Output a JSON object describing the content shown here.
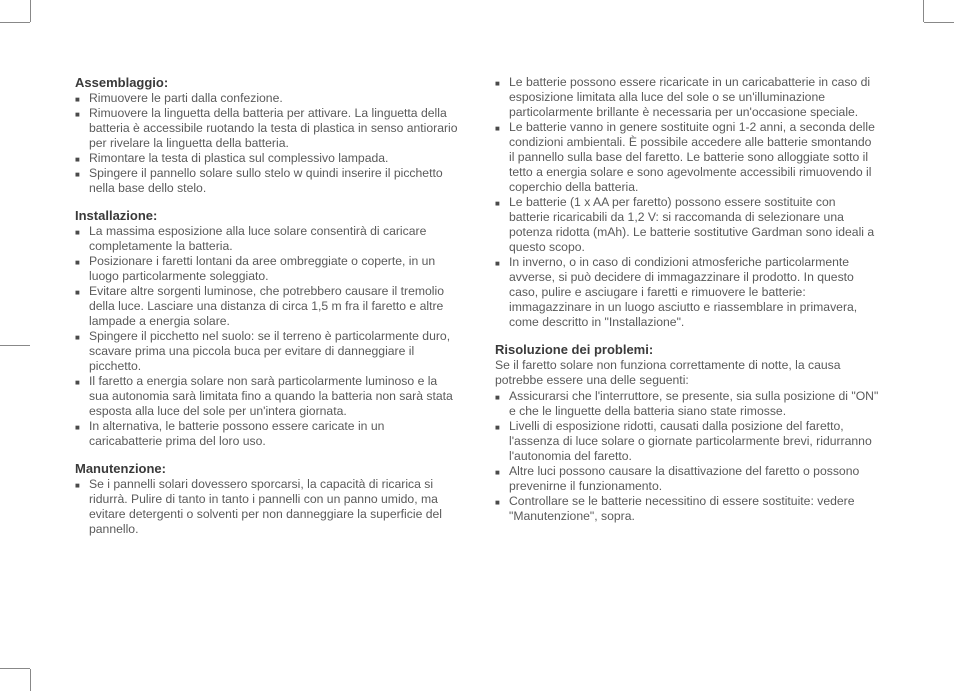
{
  "col1": {
    "assembly": {
      "title": "Assemblaggio:",
      "items": [
        "Rimuovere le parti dalla confezione.",
        "Rimuovere la linguetta della batteria per attivare. La linguetta della batteria è accessibile ruotando la testa di plastica in senso antiorario per rivelare la linguetta della batteria.",
        "Rimontare la testa di plastica sul complessivo lampada.",
        "Spingere il pannello solare sullo stelo w quindi inserire il picchetto nella base dello stelo."
      ]
    },
    "installation": {
      "title": "Installazione:",
      "items": [
        "La massima esposizione alla luce solare consentirà di caricare completamente la batteria.",
        "Posizionare i faretti lontani da aree ombreggiate o coperte, in un luogo particolarmente soleggiato.",
        "Evitare altre sorgenti luminose, che potrebbero causare il tremolio della luce. Lasciare una distanza di circa 1,5 m fra il faretto e altre lampade a energia solare.",
        "Spingere il picchetto nel suolo: se il terreno è particolarmente duro, scavare prima una piccola buca per evitare di danneggiare il picchetto.",
        "Il faretto a energia solare non sarà particolarmente luminoso e la sua autonomia sarà limitata fino a quando la batteria non sarà stata esposta alla luce del sole per un'intera giornata.",
        "In alternativa, le batterie possono essere caricate in un caricabatterie prima del loro uso."
      ]
    },
    "maintenance": {
      "title": "Manutenzione:",
      "items": [
        "Se i pannelli solari dovessero sporcarsi, la capacità di ricarica si ridurrà. Pulire di tanto in tanto i pannelli con un panno umido, ma evitare detergenti o solventi per non danneggiare la superficie del pannello."
      ]
    }
  },
  "col2": {
    "maintenance_cont": {
      "items": [
        "Le batterie possono essere ricaricate in un caricabatterie in caso di esposizione limitata alla luce del sole o se un'illuminazione particolarmente brillante è necessaria per un'occasione speciale.",
        "Le batterie vanno in genere sostituite ogni 1-2 anni, a seconda delle condizioni ambientali. È possibile accedere alle batterie smontando il pannello sulla base del faretto. Le batterie sono alloggiate sotto il tetto a energia solare e sono agevolmente accessibili rimuovendo il coperchio della batteria.",
        "Le batterie (1 x AA per faretto) possono essere sostituite con batterie ricaricabili da 1,2 V: si raccomanda di selezionare una potenza ridotta (mAh). Le batterie sostitutive Gardman sono ideali a questo scopo.",
        "In inverno, o in caso di condizioni atmosferiche particolarmente avverse, si può decidere di immagazzinare il prodotto. In questo caso, pulire e asciugare i faretti e rimuovere le batterie: immagazzinare in un luogo asciutto e riassemblare in primavera, come descritto in \"Installazione\"."
      ]
    },
    "troubleshooting": {
      "title": "Risoluzione dei problemi:",
      "intro": "Se il faretto solare non funziona correttamente di notte, la causa potrebbe essere una delle seguenti:",
      "items": [
        "Assicurarsi che l'interruttore, se presente, sia sulla posizione di \"ON\" e che le linguette della batteria siano state rimosse.",
        "Livelli di esposizione ridotti, causati dalla posizione del faretto, l'assenza di luce solare o giornate particolarmente brevi, ridurranno l'autonomia del faretto.",
        "Altre luci possono causare la disattivazione del faretto o possono prevenirne il funzionamento.",
        "Controllare se le batterie necessitino di essere sostituite: vedere \"Manutenzione\", sopra."
      ]
    }
  }
}
